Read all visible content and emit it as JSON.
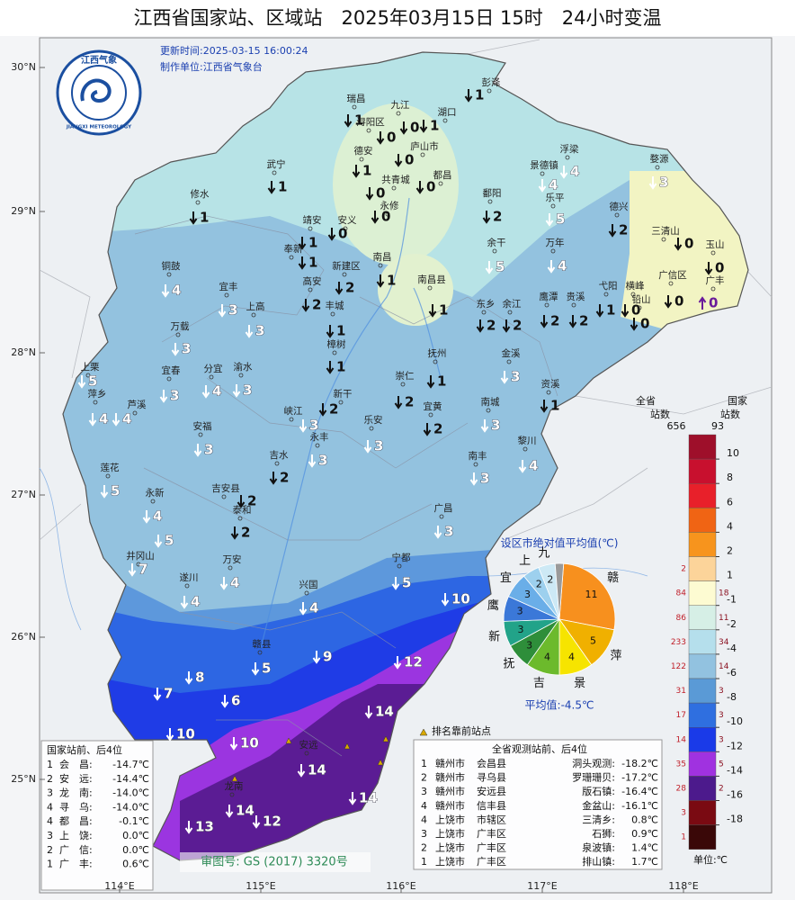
{
  "header": {
    "title": "江西省国家站、区域站　2025年03月15日 15时　24小时变温"
  },
  "info": {
    "update_time": "更新时间:2025-03-15 16:00:24",
    "producer": "制作单位:江西省气象台"
  },
  "logo": {
    "name": "江西气象",
    "english": "JIANGXI METEOROLOGY"
  },
  "axes": {
    "lat_labels": [
      "30°N",
      "29°N",
      "28°N",
      "27°N",
      "26°N",
      "25°N"
    ],
    "lon_labels": [
      "114°E",
      "115°E",
      "116°E",
      "117°E",
      "118°E"
    ]
  },
  "stations": [
    {
      "name": "彭泽",
      "value": 1,
      "trend": "down"
    },
    {
      "name": "瑞昌",
      "value": 1,
      "trend": "down"
    },
    {
      "name": "浔阳区",
      "value": 0,
      "trend": "down"
    },
    {
      "name": "九江",
      "value": 0,
      "trend": "down"
    },
    {
      "name": "湖口",
      "value": 1,
      "trend": "down"
    },
    {
      "name": "庐山市",
      "value": 0,
      "trend": "down"
    },
    {
      "name": "德安",
      "value": 1,
      "trend": "down"
    },
    {
      "name": "共青城",
      "value": 0,
      "trend": "down"
    },
    {
      "name": "都昌",
      "value": 0,
      "trend": "down"
    },
    {
      "name": "武宁",
      "value": 1,
      "trend": "down"
    },
    {
      "name": "永修",
      "value": 0,
      "trend": "down"
    },
    {
      "name": "修水",
      "value": 1,
      "trend": "down"
    },
    {
      "name": "安义",
      "value": 0,
      "trend": "down"
    },
    {
      "name": "靖安",
      "value": 1,
      "trend": "down"
    },
    {
      "name": "鄱阳",
      "value": 2,
      "trend": "down"
    },
    {
      "name": "浮梁",
      "value": 4,
      "trend": "down"
    },
    {
      "name": "景德镇",
      "value": 4,
      "trend": "down"
    },
    {
      "name": "婺源",
      "value": 3,
      "trend": "down"
    },
    {
      "name": "乐平",
      "value": 5,
      "trend": "down"
    },
    {
      "name": "德兴",
      "value": 2,
      "trend": "down"
    },
    {
      "name": "余干",
      "value": 5,
      "trend": "down"
    },
    {
      "name": "万年",
      "value": 4,
      "trend": "down"
    },
    {
      "name": "三清山",
      "value": 0,
      "trend": "down"
    },
    {
      "name": "玉山",
      "value": 0,
      "trend": "down"
    },
    {
      "name": "广丰",
      "value": 0,
      "trend": "up"
    },
    {
      "name": "广信区",
      "value": 0,
      "trend": "down"
    },
    {
      "name": "奉新",
      "value": 1,
      "trend": "down"
    },
    {
      "name": "南昌",
      "value": 1,
      "trend": "down"
    },
    {
      "name": "新建区",
      "value": 2,
      "trend": "down"
    },
    {
      "name": "南昌县",
      "value": 1,
      "trend": "down"
    },
    {
      "name": "高安",
      "value": 2,
      "trend": "down"
    },
    {
      "name": "铜鼓",
      "value": 4,
      "trend": "down"
    },
    {
      "name": "宜丰",
      "value": 3,
      "trend": "down"
    },
    {
      "name": "上高",
      "value": 3,
      "trend": "down"
    },
    {
      "name": "丰城",
      "value": 1,
      "trend": "down"
    },
    {
      "name": "东乡",
      "value": 2,
      "trend": "down"
    },
    {
      "name": "余江",
      "value": 2,
      "trend": "down"
    },
    {
      "name": "鹰潭",
      "value": 2,
      "trend": "down"
    },
    {
      "name": "贵溪",
      "value": 2,
      "trend": "down"
    },
    {
      "name": "弋阳",
      "value": 1,
      "trend": "down"
    },
    {
      "name": "横峰",
      "value": 0,
      "trend": "down"
    },
    {
      "name": "铅山",
      "value": 0,
      "trend": "down"
    },
    {
      "name": "万载",
      "value": 3,
      "trend": "down"
    },
    {
      "name": "樟树",
      "value": 1,
      "trend": "down"
    },
    {
      "name": "抚州",
      "value": 1,
      "trend": "down"
    },
    {
      "name": "金溪",
      "value": 3,
      "trend": "down"
    },
    {
      "name": "上栗",
      "value": 5,
      "trend": "down"
    },
    {
      "name": "宜春",
      "value": 3,
      "trend": "down"
    },
    {
      "name": "分宜",
      "value": 4,
      "trend": "down"
    },
    {
      "name": "渝水",
      "value": 3,
      "trend": "down"
    },
    {
      "name": "崇仁",
      "value": 2,
      "trend": "down"
    },
    {
      "name": "资溪",
      "value": 1,
      "trend": "down"
    },
    {
      "name": "萍乡",
      "value": 4,
      "trend": "down"
    },
    {
      "name": "芦溪",
      "value": 4,
      "trend": "down"
    },
    {
      "name": "新干",
      "value": 2,
      "trend": "down"
    },
    {
      "name": "宜黄",
      "value": 2,
      "trend": "down"
    },
    {
      "name": "南城",
      "value": 3,
      "trend": "down"
    },
    {
      "name": "峡江",
      "value": 3,
      "trend": "down"
    },
    {
      "name": "乐安",
      "value": 3,
      "trend": "down"
    },
    {
      "name": "永丰",
      "value": 3,
      "trend": "down"
    },
    {
      "name": "安福",
      "value": 3,
      "trend": "down"
    },
    {
      "name": "黎川",
      "value": 4,
      "trend": "down"
    },
    {
      "name": "吉水",
      "value": 2,
      "trend": "down"
    },
    {
      "name": "南丰",
      "value": 3,
      "trend": "down"
    },
    {
      "name": "莲花",
      "value": 5,
      "trend": "down"
    },
    {
      "name": "吉安县",
      "value": 2,
      "trend": "down"
    },
    {
      "name": "泰和",
      "value": 2,
      "trend": "down"
    },
    {
      "name": "永新",
      "value": 4,
      "trend": "down"
    },
    {
      "name": null,
      "value": 5,
      "trend": "down"
    },
    {
      "name": "井冈山",
      "value": 7,
      "trend": "down"
    },
    {
      "name": "广昌",
      "value": 3,
      "trend": "down"
    },
    {
      "name": "遂川",
      "value": 4,
      "trend": "down"
    },
    {
      "name": "万安",
      "value": 4,
      "trend": "down"
    },
    {
      "name": "兴国",
      "value": 4,
      "trend": "down"
    },
    {
      "name": "宁都",
      "value": 5,
      "trend": "down"
    },
    {
      "name": null,
      "value": 10,
      "trend": "down"
    },
    {
      "name": "赣县",
      "value": 5,
      "trend": "down"
    },
    {
      "name": null,
      "value": 9,
      "trend": "down"
    },
    {
      "name": null,
      "value": 12,
      "trend": "down"
    },
    {
      "name": null,
      "value": 8,
      "trend": "down"
    },
    {
      "name": null,
      "value": 6,
      "trend": "down"
    },
    {
      "name": null,
      "value": 7,
      "trend": "down"
    },
    {
      "name": null,
      "value": 10,
      "trend": "down"
    },
    {
      "name": null,
      "value": 14,
      "trend": "down"
    },
    {
      "name": null,
      "value": 10,
      "trend": "down"
    },
    {
      "name": "安远",
      "value": 14,
      "trend": "down"
    },
    {
      "name": null,
      "value": 14,
      "trend": "down"
    },
    {
      "name": "龙南",
      "value": 14,
      "trend": "down"
    },
    {
      "name": null,
      "value": 12,
      "trend": "down"
    },
    {
      "name": null,
      "value": 13,
      "trend": "down"
    }
  ],
  "legend": {
    "all_title": [
      "全省",
      "站数"
    ],
    "all_total": 656,
    "national_title": [
      "国家",
      "站数"
    ],
    "national_total": 93,
    "ticks": [
      10,
      8,
      6,
      4,
      2,
      1,
      -1,
      -2,
      -4,
      -6,
      -8,
      -10,
      -12,
      -14,
      -16,
      -18
    ],
    "colors": [
      "#9e0f2a",
      "#c8102e",
      "#e8202a",
      "#f06414",
      "#f7941d",
      "#fcd49a",
      "#fdfbd2",
      "#d6efe6",
      "#b5dfec",
      "#92c2e0",
      "#5a9ad6",
      "#2f6fe0",
      "#1a3ae8",
      "#a032e0",
      "#4c1a8c",
      "#7a0a12",
      "#3a0808"
    ],
    "all_counts": [
      null,
      null,
      null,
      null,
      null,
      2,
      84,
      86,
      233,
      122,
      31,
      17,
      14,
      35,
      28,
      3,
      1
    ],
    "national_counts": [
      null,
      null,
      null,
      null,
      null,
      null,
      18,
      11,
      34,
      14,
      3,
      3,
      3,
      5,
      2,
      null,
      null
    ],
    "unit": "单位:℃"
  },
  "pie": {
    "title": "设区市绝对值平均值(℃)",
    "categories": [
      "赣",
      "萍",
      "景",
      "吉",
      "抚",
      "新",
      "鹰",
      "宜",
      "上",
      "九",
      null
    ],
    "values": [
      11,
      5,
      4,
      4,
      3,
      3,
      3,
      3,
      2,
      2,
      1
    ],
    "colors": [
      "#f7901e",
      "#f0b000",
      "#f6e400",
      "#6cba2c",
      "#2e8e3a",
      "#22a389",
      "#3b78d8",
      "#6aaee8",
      "#9dd0ee",
      "#cde9f5",
      "#9a9a9a"
    ],
    "average": "平均值:-4.5℃"
  },
  "national_rank": {
    "title": "国家站前、后4位",
    "rows": [
      [
        "1",
        "会　昌:",
        "-14.7℃"
      ],
      [
        "2",
        "安　远:",
        "-14.4℃"
      ],
      [
        "3",
        "龙　南:",
        "-14.0℃"
      ],
      [
        "4",
        "寻　乌:",
        "-14.0℃"
      ],
      [
        "4",
        "都　昌:",
        "-0.1℃"
      ],
      [
        "3",
        "上　饶:",
        "0.0℃"
      ],
      [
        "2",
        "广　信:",
        "0.0℃"
      ],
      [
        "1",
        "广　丰:",
        "0.6℃"
      ]
    ]
  },
  "province_rank": {
    "title": "全省观测站前、后4位",
    "marker_note": "排名靠前站点",
    "rows": [
      [
        "1",
        "赣州市",
        "会昌县",
        "洞头观测:",
        "-18.2℃"
      ],
      [
        "2",
        "赣州市",
        "寻乌县",
        "罗珊珊贝:",
        "-17.2℃"
      ],
      [
        "3",
        "赣州市",
        "安远县",
        "版石镇:",
        "-16.4℃"
      ],
      [
        "4",
        "赣州市",
        "信丰县",
        "金盆山:",
        "-16.1℃"
      ],
      [
        "4",
        "上饶市",
        "市辖区",
        "三清乡:",
        "0.8℃"
      ],
      [
        "3",
        "上饶市",
        "广丰区",
        "石狮:",
        "0.9℃"
      ],
      [
        "2",
        "上饶市",
        "广丰区",
        "泉波镇:",
        "1.4℃"
      ],
      [
        "1",
        "上饶市",
        "广丰区",
        "排山镇:",
        "1.7℃"
      ]
    ]
  },
  "review_number": "审图号: GS (2017) 3320号"
}
